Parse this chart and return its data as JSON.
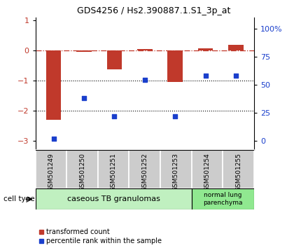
{
  "title": "GDS4256 / Hs2.390887.1.S1_3p_at",
  "samples": [
    "GSM501249",
    "GSM501250",
    "GSM501251",
    "GSM501252",
    "GSM501253",
    "GSM501254",
    "GSM501255"
  ],
  "transformed_count": [
    -2.3,
    -0.05,
    -0.62,
    0.05,
    -1.05,
    0.07,
    0.18
  ],
  "percentile_rank": [
    2,
    38,
    22,
    54,
    22,
    58,
    58
  ],
  "ylim_left": [
    -3.3,
    1.1
  ],
  "ylim_right": [
    -8.25,
    110
  ],
  "y_ticks_left": [
    1,
    0,
    -1,
    -2,
    -3
  ],
  "y_ticks_right": [
    0,
    25,
    50,
    75,
    100
  ],
  "bar_color": "#C0392B",
  "scatter_color": "#1a3fcc",
  "dotted_lines": [
    -1,
    -2
  ],
  "group1_indices": [
    0,
    4
  ],
  "group1_label": "caseous TB granulomas",
  "group1_color": "#c0f0c0",
  "group2_indices": [
    5,
    6
  ],
  "group2_label": "normal lung\nparenchyma",
  "group2_color": "#90e890",
  "cell_type_label": "cell type",
  "legend_label_red": "transformed count",
  "legend_label_blue": "percentile rank within the sample",
  "background_color": "#ffffff",
  "bar_width": 0.5
}
